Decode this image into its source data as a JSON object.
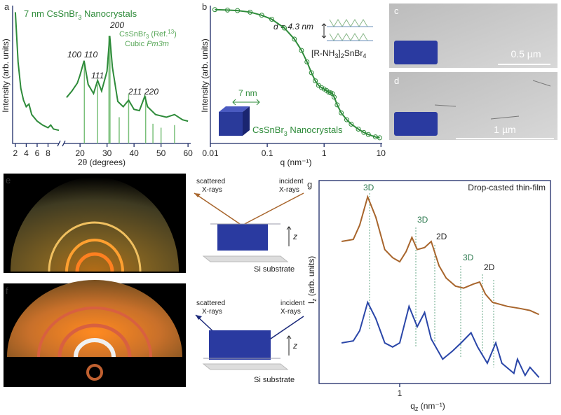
{
  "chart_data": [
    {
      "type": "line",
      "panel": "a",
      "title_parts": [
        "7 nm CsSnBr",
        "3",
        " Nanocrystals"
      ],
      "reference_parts": [
        "CsSnBr",
        "3",
        " (Ref.",
        "13",
        ")"
      ],
      "reference_phase": [
        "Cubic ",
        "Pm3m"
      ],
      "peak_labels": [
        "100",
        "110",
        "111",
        "200",
        "211",
        "220"
      ],
      "y_label": "Intensity (arb. units)",
      "x_label": "2θ (degrees)",
      "xlim": [
        1.5,
        61
      ],
      "x_break": [
        10,
        14
      ],
      "xticks": [
        2,
        4,
        6,
        8,
        20,
        30,
        40,
        50,
        60
      ],
      "ylim": [
        0,
        105
      ],
      "x": [
        2,
        2.5,
        3,
        3.5,
        4,
        4.5,
        5,
        6,
        7,
        8,
        8.5,
        9,
        10,
        12,
        15,
        17,
        19,
        20,
        21.5,
        23,
        25,
        26.5,
        28,
        30,
        31,
        32,
        34,
        36,
        38,
        40,
        42,
        44,
        45,
        48,
        52,
        55,
        58,
        60
      ],
      "series": [
        {
          "color": "#2e8b3a",
          "values": [
            100,
            62,
            42,
            33,
            28,
            30,
            22,
            17,
            14,
            12,
            14,
            11,
            10,
            null,
            35,
            40,
            46,
            52,
            63,
            45,
            38,
            48,
            40,
            55,
            82,
            58,
            32,
            28,
            33,
            26,
            25,
            36,
            28,
            22,
            20,
            22,
            18,
            17
          ]
        }
      ],
      "reference_peaks": {
        "color": "#7ac07a",
        "x": [
          21.6,
          26.5,
          30.7,
          31.1,
          34.5,
          38,
          44.3,
          47,
          50,
          55
        ],
        "values": [
          60,
          45,
          82,
          78,
          20,
          38,
          36,
          15,
          12,
          14
        ]
      }
    },
    {
      "type": "line",
      "panel": "b",
      "y_label": "Intensity (arb. units)",
      "x_label": "q (nm⁻¹)",
      "xlim": [
        0.01,
        10.5
      ],
      "xticks": [
        0.01,
        0.1,
        1,
        10
      ],
      "ylim": [
        1,
        20000
      ],
      "log_x": true,
      "log_y": true,
      "size_label": "7 nm",
      "spacing_label": "d = 4.3 nm",
      "phase_parts": [
        "[R-NH",
        "3",
        "]",
        "2",
        "SnBr",
        "4"
      ],
      "nanocrystal_parts": [
        "CsSnBr",
        "3",
        " Nanocrystals"
      ],
      "x": [
        0.012,
        0.02,
        0.03,
        0.05,
        0.08,
        0.12,
        0.2,
        0.3,
        0.4,
        0.5,
        0.6,
        0.7,
        0.8,
        0.9,
        1.0,
        1.1,
        1.2,
        1.3,
        1.4,
        1.5,
        1.7,
        2,
        2.5,
        3,
        4,
        5,
        6,
        8,
        9.5
      ],
      "series": [
        {
          "color": "#2e8b3a",
          "values": [
            15000,
            14500,
            14000,
            12500,
            10000,
            7500,
            4000,
            1800,
            800,
            350,
            160,
            90,
            65,
            55,
            50,
            45,
            40,
            38,
            36,
            28,
            16,
            9,
            5.5,
            4,
            2.8,
            2.2,
            1.9,
            1.6,
            1.5
          ]
        }
      ]
    },
    {
      "type": "line",
      "panel": "g",
      "title": "Drop-casted thin-film",
      "y_label_parts": [
        "I",
        "z",
        " (arb. units)"
      ],
      "x_label_parts": [
        "q",
        "z",
        " (nm⁻¹)"
      ],
      "xlim": [
        0.3,
        9.5
      ],
      "xticks": [
        1
      ],
      "ylim": [
        0,
        100
      ],
      "log_x": true,
      "annotations": [
        "3D",
        "3D",
        "2D",
        "3D",
        "2D"
      ],
      "series": [
        {
          "color": "#a8652c",
          "x": [
            0.42,
            0.5,
            0.55,
            0.62,
            0.7,
            0.8,
            0.9,
            1.0,
            1.1,
            1.2,
            1.3,
            1.45,
            1.6,
            1.8,
            2.0,
            2.3,
            2.6,
            3.0,
            3.3,
            3.6,
            4,
            5,
            6,
            7,
            8
          ],
          "values": [
            70,
            71,
            78,
            92,
            82,
            66,
            62,
            60,
            65,
            72,
            66,
            67,
            70,
            58,
            52,
            48,
            47,
            49,
            50,
            44,
            40,
            38,
            37,
            36,
            34
          ]
        },
        {
          "color": "#2a46a8",
          "x": [
            0.42,
            0.5,
            0.55,
            0.62,
            0.7,
            0.8,
            0.9,
            1.0,
            1.15,
            1.3,
            1.45,
            1.6,
            1.9,
            2.2,
            2.5,
            2.9,
            3.2,
            3.7,
            4.2,
            4.6,
            5.5,
            5.8,
            6.5,
            7,
            8
          ],
          "values": [
            20,
            21,
            26,
            40,
            32,
            20,
            18,
            20,
            38,
            28,
            35,
            22,
            12,
            16,
            20,
            25,
            18,
            10,
            20,
            10,
            5,
            12,
            4,
            8,
            3
          ]
        }
      ]
    }
  ],
  "images": {
    "c": {
      "panel": "c",
      "scale_bar": "0.5 µm"
    },
    "d": {
      "panel": "d",
      "scale_bar": "1 µm"
    },
    "e": {
      "panel": "e",
      "scattered": [
        "scattered",
        "X-rays"
      ],
      "incident": [
        "incident",
        "X-rays"
      ],
      "axis": "z",
      "substrate": "Si substrate"
    },
    "f": {
      "panel": "f",
      "scattered": [
        "scattered",
        "X-rays"
      ],
      "incident": [
        "incident",
        "X-rays"
      ],
      "axis": "z",
      "substrate": "Si substrate"
    }
  }
}
